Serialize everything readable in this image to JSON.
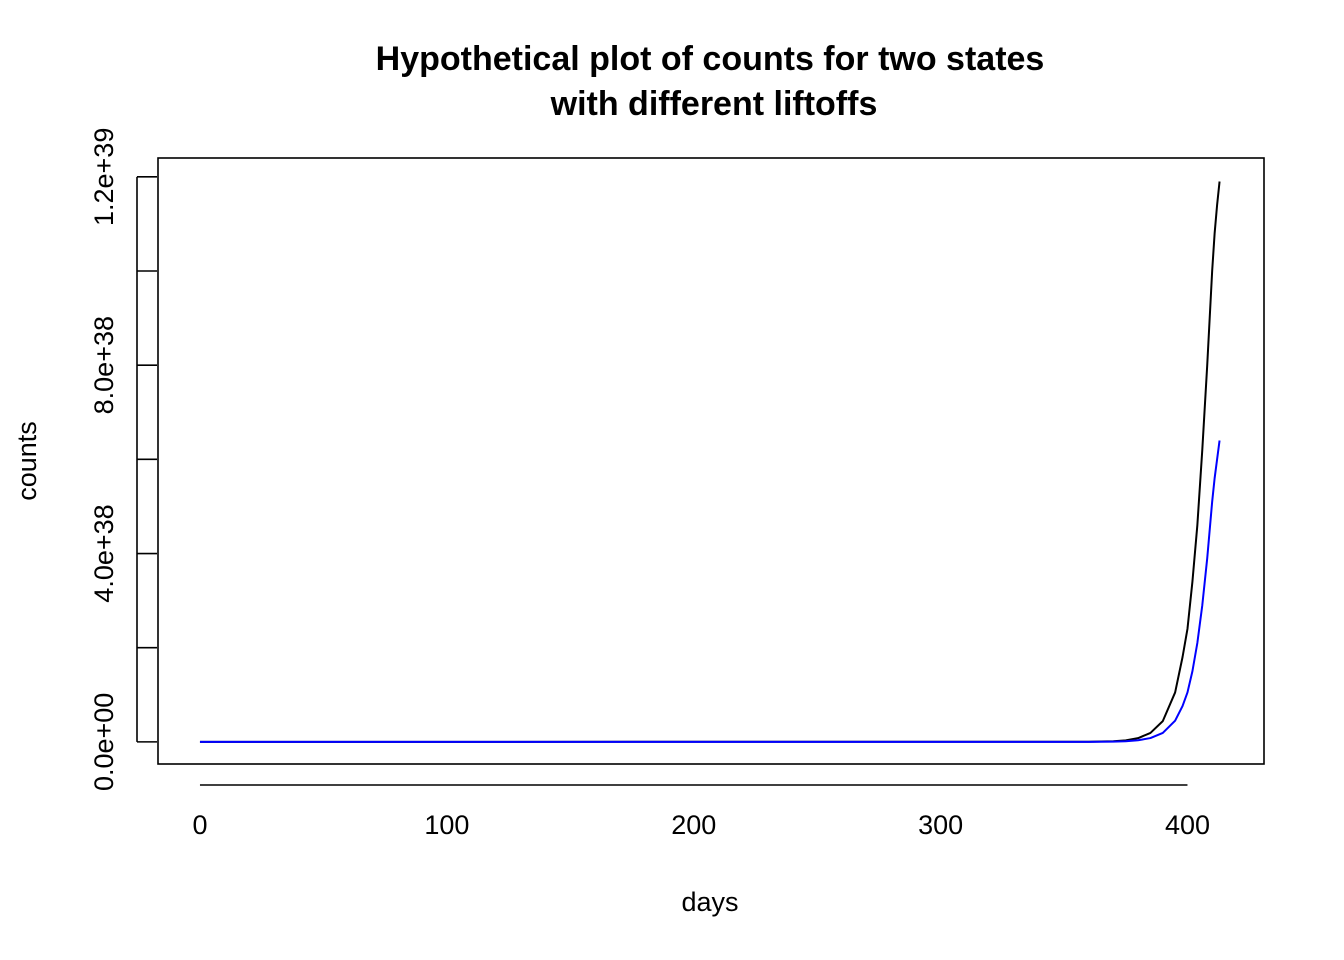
{
  "chart_data": {
    "type": "line",
    "title": [
      "Hypothetical plot of counts for two states",
      "with different liftoffs"
    ],
    "xlabel": "days",
    "ylabel": "counts",
    "xlim": [
      -17,
      431
    ],
    "ylim": [
      -4.7e+37,
      1.24e+39
    ],
    "x_ticks": [
      0,
      100,
      200,
      300,
      400
    ],
    "x_tick_labels": [
      "0",
      "100",
      "200",
      "300",
      "400"
    ],
    "y_ticks": [
      0,
      2e+38,
      4e+38,
      6e+38,
      8e+38,
      1e+39,
      1.2e+39
    ],
    "y_tick_labels": [
      "0.0e+00",
      "",
      "4.0e+38",
      "",
      "8.0e+38",
      "",
      "1.2e+39"
    ],
    "grid": false,
    "series": [
      {
        "color": "#000000",
        "x": [
          0,
          360,
          370,
          375,
          380,
          385,
          390,
          395,
          398,
          400,
          402,
          404,
          406,
          408,
          410,
          411,
          412,
          413
        ],
        "values": [
          0,
          2.5e+35,
          1.4e+36,
          3.3e+36,
          7.9e+36,
          1.9e+37,
          4.4e+37,
          1.05e+38,
          1.8e+38,
          2.4e+38,
          3.4e+38,
          4.6e+38,
          6.2e+38,
          8e+38,
          1e+39,
          1.08e+39,
          1.14e+39,
          1.19e+39
        ]
      },
      {
        "color": "#0000ff",
        "x": [
          0,
          360,
          370,
          375,
          380,
          385,
          390,
          395,
          398,
          400,
          402,
          404,
          406,
          408,
          410,
          411,
          412,
          413
        ],
        "values": [
          0,
          1e+35,
          6e+35,
          1.4e+36,
          3.4e+36,
          8.1e+36,
          1.9e+37,
          4.5e+37,
          7.6e+37,
          1.05e+38,
          1.5e+38,
          2.1e+38,
          2.9e+38,
          3.9e+38,
          5.1e+38,
          5.6e+38,
          6e+38,
          6.4e+38
        ]
      }
    ]
  }
}
